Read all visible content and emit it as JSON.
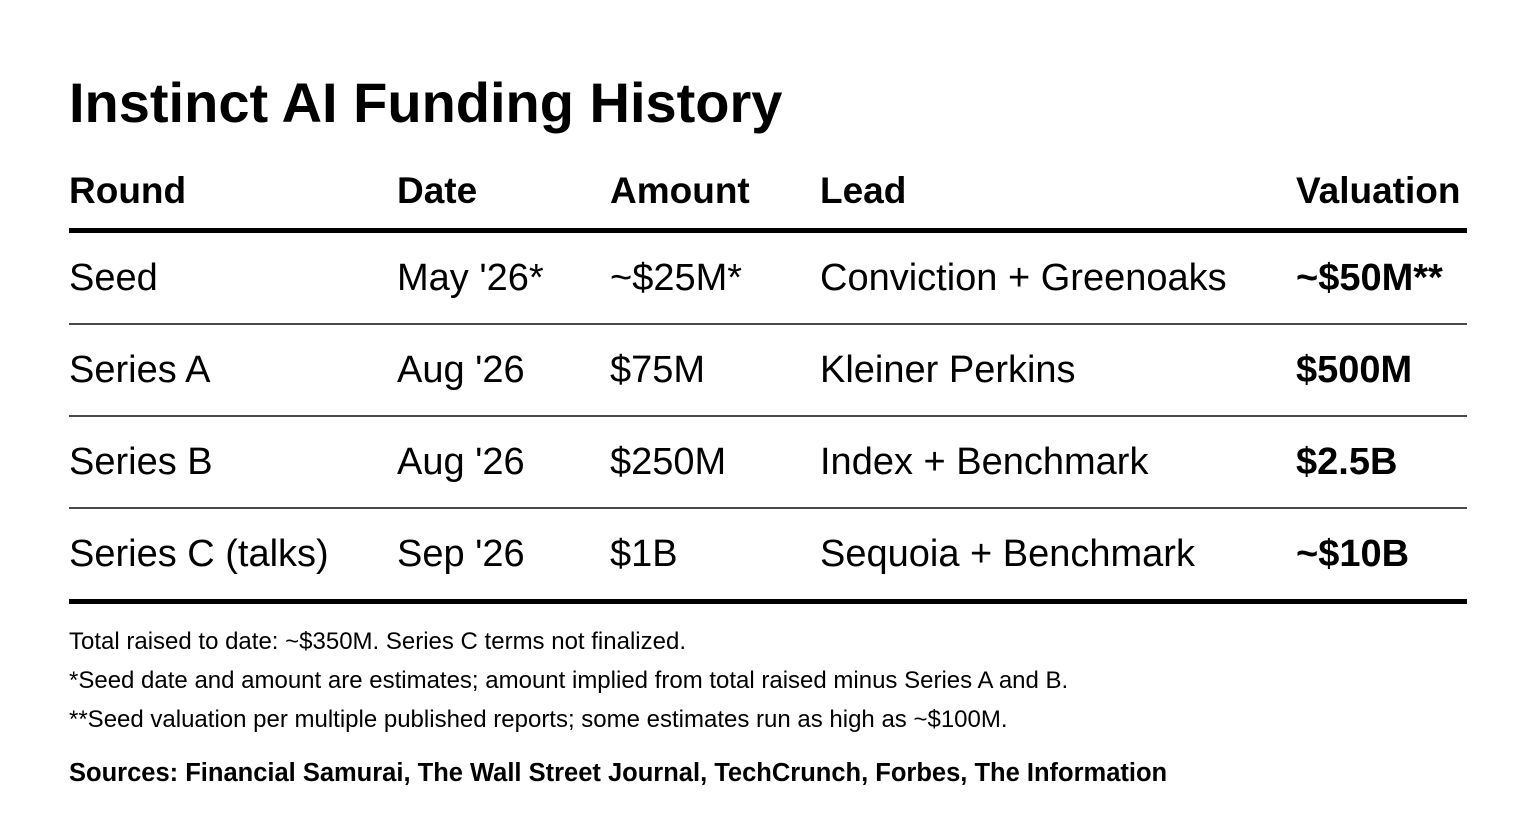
{
  "title": "Instinct AI Funding History",
  "table": {
    "headers": {
      "round": "Round",
      "date": "Date",
      "amount": "Amount",
      "lead": "Lead",
      "valuation": "Valuation"
    },
    "rows": [
      {
        "round": "Seed",
        "date": "May '26*",
        "amount": "~$25M*",
        "lead": "Conviction + Greenoaks",
        "valuation": "~$50M**"
      },
      {
        "round": "Series A",
        "date": "Aug '26",
        "amount": "$75M",
        "lead": "Kleiner Perkins",
        "valuation": "$500M"
      },
      {
        "round": "Series B",
        "date": "Aug '26",
        "amount": "$250M",
        "lead": "Index + Benchmark",
        "valuation": "$2.5B"
      },
      {
        "round": "Series C (talks)",
        "date": "Sep '26",
        "amount": "$1B",
        "lead": "Sequoia + Benchmark",
        "valuation": "~$10B"
      }
    ]
  },
  "notes": [
    "Total raised to date: ~$350M. Series C terms not finalized.",
    "*Seed date and amount are estimates; amount implied from total raised minus Series A and B.",
    "**Seed valuation per multiple published reports; some estimates run as high as ~$100M."
  ],
  "sources": "Sources: Financial Samurai, The Wall Street Journal, TechCrunch, Forbes, The Information"
}
